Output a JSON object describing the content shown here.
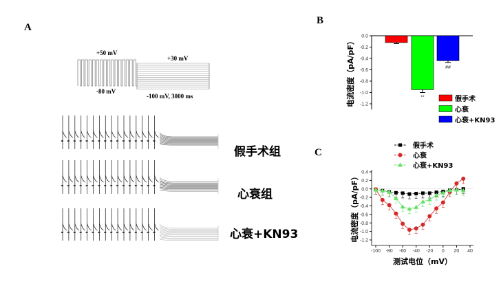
{
  "panels": {
    "a": "A",
    "b": "B",
    "c": "C"
  },
  "protocol": {
    "top_pulse": "+50 mV",
    "bottom_pulse": "-80 mV",
    "top_step": "+30 mV",
    "bottom_step": "-100 mV, 3000 ms"
  },
  "trace_labels": [
    "假手术组",
    "心衰组",
    "心衰+KN93"
  ],
  "colors": {
    "sham": "#ff0000",
    "hf": "#00ff00",
    "kn93": "#0000ff",
    "line_sham": "#000000",
    "line_hf": "#d42a2a",
    "line_kn93": "#66e066"
  },
  "chart_data": [
    {
      "type": "bar",
      "panel": "B",
      "categories": [
        "假手术",
        "心衰",
        "心衰+KN93"
      ],
      "values": [
        -0.12,
        -0.95,
        -0.44
      ],
      "errors": [
        0.02,
        0.05,
        0.03
      ],
      "annotations": [
        "",
        "**",
        "##"
      ],
      "ylabel": "电流密度（pA/pF）",
      "ylim": [
        -1.3,
        0.0
      ],
      "yticks": [
        "0.0",
        "-0.2",
        "-0.4",
        "-0.6",
        "-0.8",
        "-1.0",
        "-1.2"
      ],
      "legend": [
        "假手术",
        "心衰",
        "心衰+KN93"
      ],
      "legend_position": "bottom-right"
    },
    {
      "type": "line",
      "panel": "C",
      "x": [
        -100,
        -90,
        -80,
        -70,
        -60,
        -50,
        -40,
        -30,
        -20,
        -10,
        0,
        10,
        20,
        30
      ],
      "series": [
        {
          "name": "假手术",
          "marker": "square",
          "values": [
            -0.01,
            -0.04,
            -0.07,
            -0.09,
            -0.1,
            -0.12,
            -0.11,
            -0.1,
            -0.1,
            -0.08,
            -0.06,
            -0.03,
            -0.02,
            0.0
          ]
        },
        {
          "name": "心衰",
          "marker": "circle",
          "values": [
            -0.01,
            -0.26,
            -0.38,
            -0.58,
            -0.82,
            -0.96,
            -0.93,
            -0.84,
            -0.64,
            -0.46,
            -0.32,
            -0.07,
            0.13,
            0.24
          ]
        },
        {
          "name": "心衰+KN93",
          "marker": "triangle",
          "values": [
            -0.02,
            -0.04,
            -0.07,
            -0.22,
            -0.42,
            -0.47,
            -0.43,
            -0.3,
            -0.25,
            -0.15,
            -0.09,
            -0.03,
            -0.02,
            -0.04
          ]
        }
      ],
      "xlabel": "测试电位（mV）",
      "ylabel": "电流密度（pA/pF）",
      "xlim": [
        -100,
        40
      ],
      "ylim": [
        -1.3,
        0.4
      ],
      "xticks": [
        "-100",
        "-80",
        "-60",
        "-40",
        "-20",
        "0",
        "20",
        "40"
      ],
      "yticks": [
        "0.4",
        "0.2",
        "0.0",
        "-0.2",
        "-0.4",
        "-0.6",
        "-0.8",
        "-1.0",
        "-1.2"
      ],
      "legend_position": "top"
    }
  ]
}
